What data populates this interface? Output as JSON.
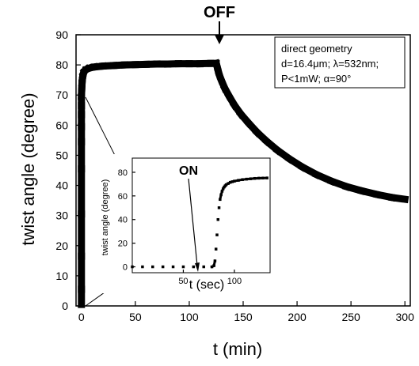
{
  "chart_data": [
    {
      "type": "scatter",
      "xlabel": "t (min)",
      "ylabel": "twist angle (degree)",
      "xlim": [
        -5,
        305
      ],
      "ylim": [
        0,
        90
      ],
      "xticks": [
        0,
        50,
        100,
        150,
        200,
        250,
        300
      ],
      "yticks": [
        0,
        10,
        20,
        30,
        40,
        50,
        60,
        70,
        80,
        90
      ],
      "series": [
        {
          "x": [
            0,
            0,
            0,
            0,
            0,
            0,
            0,
            0,
            0,
            0,
            0.3,
            0.6,
            1,
            1.5,
            2,
            3,
            5,
            8,
            12,
            20,
            30,
            40,
            50,
            60,
            70,
            80,
            90,
            100,
            110,
            120,
            125,
            126,
            127,
            128,
            130,
            133,
            137,
            142,
            148,
            155,
            163,
            172,
            182,
            193,
            205,
            218,
            232,
            246,
            260,
            274,
            288,
            300
          ],
          "y": [
            0.5,
            5.5,
            16.5,
            30.5,
            45.5,
            54.5,
            59.5,
            63.5,
            66.5,
            69.5,
            72,
            74,
            75.5,
            76.5,
            77.3,
            78,
            78.6,
            79,
            79.3,
            79.6,
            79.8,
            80,
            80.1,
            80.2,
            80.3,
            80.3,
            80.4,
            80.4,
            80.4,
            80.5,
            80.5,
            79.2,
            77.8,
            76.6,
            74.7,
            72.2,
            69.6,
            66.6,
            63.6,
            60.7,
            57.6,
            54.6,
            51.6,
            48.8,
            46.1,
            43.6,
            41.4,
            39.6,
            38.2,
            37,
            36,
            35.4
          ]
        }
      ],
      "annotations": [
        "OFF"
      ]
    },
    {
      "type": "scatter",
      "xlabel": "t (sec)",
      "ylabel": "twist angle (degree)",
      "xlim": [
        0,
        135
      ],
      "ylim": [
        -5,
        92
      ],
      "xticks": [
        50,
        100
      ],
      "yticks": [
        0,
        20,
        40,
        60,
        80
      ],
      "series": [
        {
          "x": [
            0,
            10,
            20,
            30,
            40,
            50,
            60,
            70,
            78,
            80,
            81,
            82,
            83,
            84,
            85,
            86,
            87,
            88,
            89,
            90,
            91,
            92,
            94,
            96,
            98,
            100,
            104,
            108,
            112,
            116,
            120,
            124,
            128,
            132
          ],
          "y": [
            0,
            0,
            0,
            0,
            0,
            0,
            0,
            0,
            0,
            1,
            5,
            15,
            27,
            40,
            50,
            57,
            61,
            64,
            66,
            67.5,
            68.5,
            69.5,
            70.5,
            71.5,
            72,
            72.5,
            73.2,
            73.8,
            74.2,
            74.5,
            74.8,
            75,
            75.1,
            75.2
          ]
        }
      ],
      "annotations": [
        "ON"
      ]
    }
  ],
  "legend": {
    "line1": "direct geometry",
    "line2": "d=16.4μm; λ=532nm;",
    "line3": "P<1mW; α=90°"
  }
}
